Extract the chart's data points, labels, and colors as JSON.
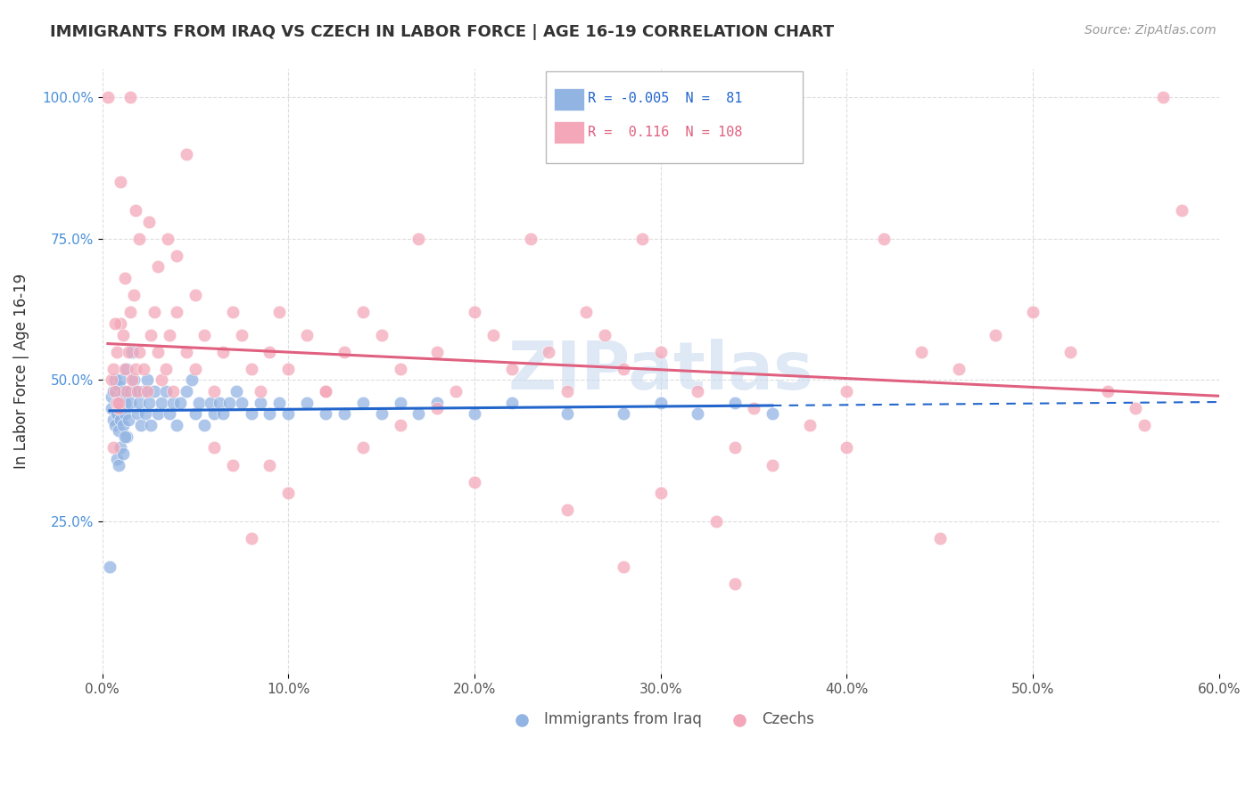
{
  "title": "IMMIGRANTS FROM IRAQ VS CZECH IN LABOR FORCE | AGE 16-19 CORRELATION CHART",
  "source": "Source: ZipAtlas.com",
  "ylabel": "In Labor Force | Age 16-19",
  "xlim": [
    0.0,
    0.6
  ],
  "ylim": [
    -0.02,
    1.05
  ],
  "xtick_labels": [
    "0.0%",
    "10.0%",
    "20.0%",
    "30.0%",
    "40.0%",
    "50.0%",
    "60.0%"
  ],
  "xtick_vals": [
    0.0,
    0.1,
    0.2,
    0.3,
    0.4,
    0.5,
    0.6
  ],
  "ytick_labels": [
    "25.0%",
    "50.0%",
    "75.0%",
    "100.0%"
  ],
  "ytick_vals": [
    0.25,
    0.5,
    0.75,
    1.0
  ],
  "iraq_color": "#92b4e3",
  "czech_color": "#f4a7b9",
  "iraq_line_color": "#2266cc",
  "czech_line_color": "#e06080",
  "iraq_R": -0.005,
  "iraq_N": 81,
  "czech_R": 0.116,
  "czech_N": 108,
  "legend_label_iraq": "Immigrants from Iraq",
  "legend_label_czech": "Czechs",
  "watermark": "ZIPatlas",
  "background_color": "#ffffff",
  "grid_color": "#dddddd",
  "iraq_x": [
    0.004,
    0.005,
    0.005,
    0.006,
    0.006,
    0.007,
    0.007,
    0.008,
    0.008,
    0.009,
    0.009,
    0.01,
    0.01,
    0.01,
    0.01,
    0.011,
    0.011,
    0.012,
    0.012,
    0.013,
    0.013,
    0.014,
    0.015,
    0.015,
    0.016,
    0.017,
    0.018,
    0.019,
    0.02,
    0.021,
    0.022,
    0.023,
    0.024,
    0.025,
    0.026,
    0.028,
    0.03,
    0.032,
    0.034,
    0.036,
    0.038,
    0.04,
    0.042,
    0.045,
    0.048,
    0.05,
    0.052,
    0.055,
    0.058,
    0.06,
    0.063,
    0.065,
    0.068,
    0.072,
    0.075,
    0.08,
    0.085,
    0.09,
    0.095,
    0.1,
    0.11,
    0.12,
    0.13,
    0.14,
    0.15,
    0.16,
    0.17,
    0.18,
    0.2,
    0.22,
    0.25,
    0.28,
    0.3,
    0.32,
    0.34,
    0.36,
    0.008,
    0.009,
    0.01,
    0.011,
    0.012
  ],
  "iraq_y": [
    0.17,
    0.45,
    0.47,
    0.43,
    0.48,
    0.42,
    0.5,
    0.44,
    0.46,
    0.41,
    0.49,
    0.43,
    0.45,
    0.47,
    0.5,
    0.42,
    0.48,
    0.44,
    0.46,
    0.4,
    0.52,
    0.43,
    0.48,
    0.46,
    0.55,
    0.5,
    0.48,
    0.44,
    0.46,
    0.42,
    0.48,
    0.44,
    0.5,
    0.46,
    0.42,
    0.48,
    0.44,
    0.46,
    0.48,
    0.44,
    0.46,
    0.42,
    0.46,
    0.48,
    0.5,
    0.44,
    0.46,
    0.42,
    0.46,
    0.44,
    0.46,
    0.44,
    0.46,
    0.48,
    0.46,
    0.44,
    0.46,
    0.44,
    0.46,
    0.44,
    0.46,
    0.44,
    0.44,
    0.46,
    0.44,
    0.46,
    0.44,
    0.46,
    0.44,
    0.46,
    0.44,
    0.44,
    0.46,
    0.44,
    0.46,
    0.44,
    0.36,
    0.35,
    0.38,
    0.37,
    0.4
  ],
  "czech_x": [
    0.003,
    0.005,
    0.006,
    0.007,
    0.008,
    0.009,
    0.01,
    0.01,
    0.011,
    0.012,
    0.012,
    0.013,
    0.014,
    0.015,
    0.016,
    0.017,
    0.018,
    0.019,
    0.02,
    0.022,
    0.024,
    0.026,
    0.028,
    0.03,
    0.032,
    0.034,
    0.036,
    0.038,
    0.04,
    0.045,
    0.05,
    0.055,
    0.06,
    0.065,
    0.07,
    0.075,
    0.08,
    0.085,
    0.09,
    0.095,
    0.1,
    0.11,
    0.12,
    0.13,
    0.14,
    0.15,
    0.16,
    0.17,
    0.18,
    0.19,
    0.2,
    0.21,
    0.22,
    0.23,
    0.24,
    0.25,
    0.26,
    0.27,
    0.28,
    0.29,
    0.3,
    0.32,
    0.34,
    0.36,
    0.38,
    0.4,
    0.42,
    0.44,
    0.46,
    0.48,
    0.5,
    0.52,
    0.54,
    0.015,
    0.018,
    0.02,
    0.025,
    0.03,
    0.035,
    0.04,
    0.05,
    0.06,
    0.07,
    0.08,
    0.09,
    0.1,
    0.12,
    0.14,
    0.16,
    0.18,
    0.2,
    0.25,
    0.3,
    0.35,
    0.4,
    0.45,
    0.28,
    0.33,
    0.045,
    0.34,
    0.006,
    0.007,
    0.008,
    0.009,
    0.555,
    0.56,
    0.57,
    0.58
  ],
  "czech_y": [
    1.0,
    0.5,
    0.52,
    0.48,
    0.55,
    0.45,
    0.6,
    0.85,
    0.58,
    0.52,
    0.68,
    0.48,
    0.55,
    0.62,
    0.5,
    0.65,
    0.52,
    0.48,
    0.55,
    0.52,
    0.48,
    0.58,
    0.62,
    0.55,
    0.5,
    0.52,
    0.58,
    0.48,
    0.62,
    0.55,
    0.52,
    0.58,
    0.48,
    0.55,
    0.62,
    0.58,
    0.52,
    0.48,
    0.55,
    0.62,
    0.52,
    0.58,
    0.48,
    0.55,
    0.62,
    0.58,
    0.52,
    0.75,
    0.55,
    0.48,
    0.62,
    0.58,
    0.52,
    0.75,
    0.55,
    0.48,
    0.62,
    0.58,
    0.52,
    0.75,
    0.55,
    0.48,
    0.38,
    0.35,
    0.42,
    0.38,
    0.75,
    0.55,
    0.52,
    0.58,
    0.62,
    0.55,
    0.48,
    1.0,
    0.8,
    0.75,
    0.78,
    0.7,
    0.75,
    0.72,
    0.65,
    0.38,
    0.35,
    0.22,
    0.35,
    0.3,
    0.48,
    0.38,
    0.42,
    0.45,
    0.32,
    0.27,
    0.3,
    0.45,
    0.48,
    0.22,
    0.17,
    0.25,
    0.9,
    0.14,
    0.38,
    0.6,
    0.46,
    0.46,
    0.45,
    0.42,
    1.0,
    0.8
  ]
}
